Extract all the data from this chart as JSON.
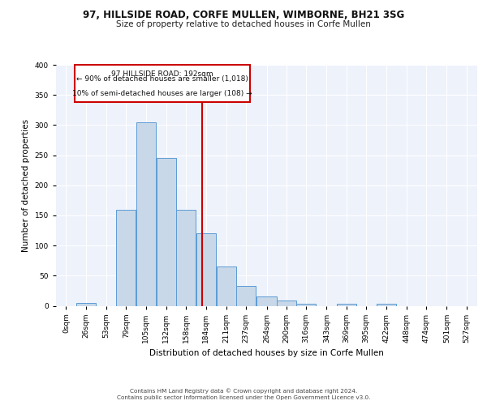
{
  "title1": "97, HILLSIDE ROAD, CORFE MULLEN, WIMBORNE, BH21 3SG",
  "title2": "Size of property relative to detached houses in Corfe Mullen",
  "xlabel": "Distribution of detached houses by size in Corfe Mullen",
  "ylabel": "Number of detached properties",
  "footer1": "Contains HM Land Registry data © Crown copyright and database right 2024.",
  "footer2": "Contains public sector information licensed under the Open Government Licence v3.0.",
  "annotation_line1": "97 HILLSIDE ROAD: 192sqm",
  "annotation_line2": "← 90% of detached houses are smaller (1,018)",
  "annotation_line3": "10% of semi-detached houses are larger (108) →",
  "property_size": 192,
  "bin_starts": [
    0,
    26,
    53,
    79,
    105,
    132,
    158,
    184,
    211,
    237,
    264,
    290,
    316,
    343,
    369,
    395,
    422,
    448,
    474,
    501,
    527
  ],
  "bar_values": [
    0,
    5,
    0,
    160,
    305,
    245,
    160,
    120,
    65,
    33,
    16,
    9,
    3,
    0,
    3,
    0,
    3,
    0,
    0,
    0,
    0
  ],
  "bar_color": "#c8d8e8",
  "bar_edge_color": "#5b9bd5",
  "vline_color": "#cc0000",
  "annotation_box_color": "#cc0000",
  "background_color": "#eef2fb",
  "grid_color": "#ffffff",
  "ylim": [
    0,
    400
  ],
  "yticks": [
    0,
    50,
    100,
    150,
    200,
    250,
    300,
    350,
    400
  ],
  "title1_fontsize": 8.5,
  "title2_fontsize": 7.5,
  "ylabel_fontsize": 7.5,
  "xlabel_fontsize": 7.5,
  "tick_fontsize": 6.5,
  "footer_fontsize": 5.2
}
